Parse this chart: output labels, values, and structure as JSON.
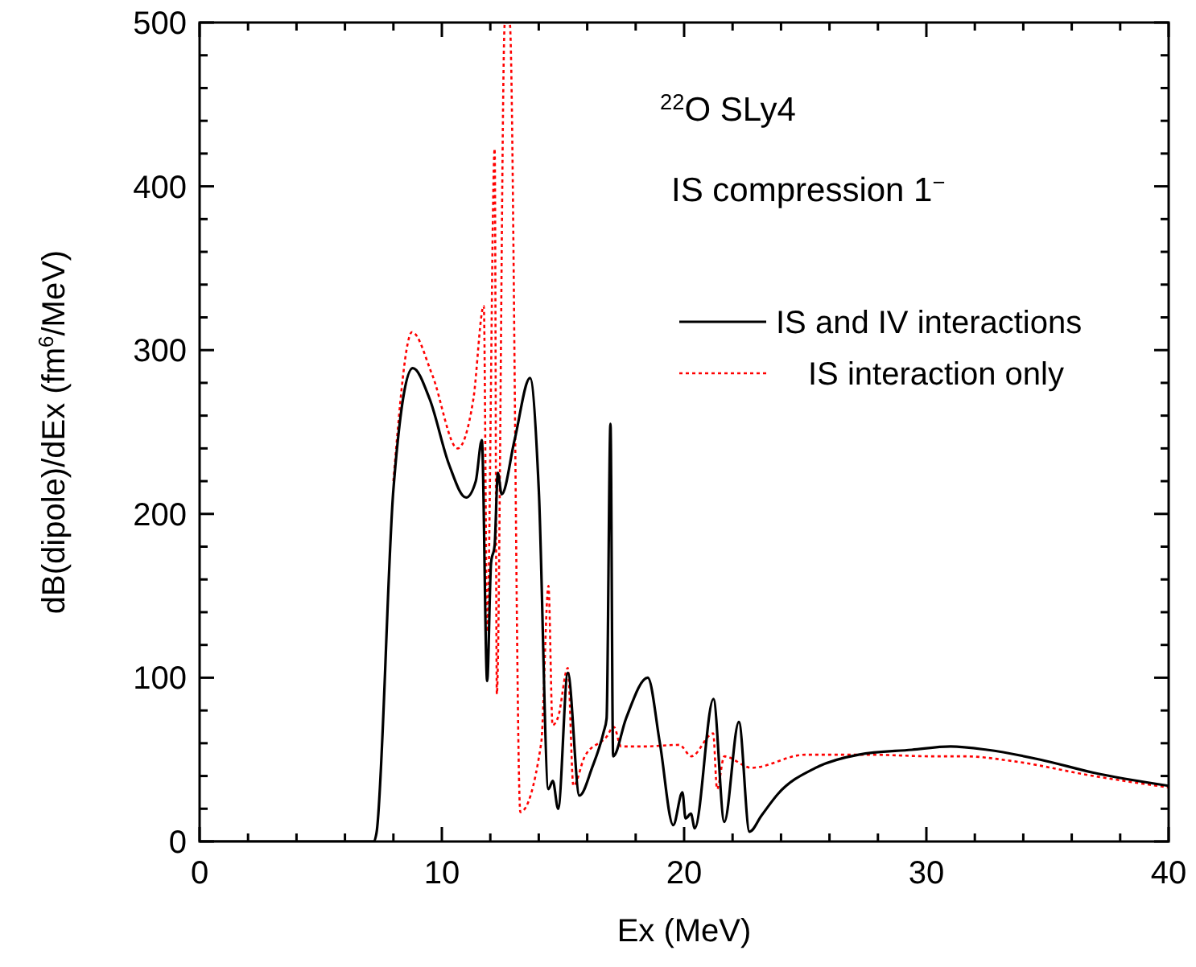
{
  "chart_data": {
    "type": "line",
    "xlabel": "Ex (MeV)",
    "ylabel": "dB(dipole)/dEx (fm$^{6}$/MeV)",
    "annotations": [
      "$^{22}$O  SLy4",
      "IS compression 1$^{−}$"
    ],
    "xlim": [
      0,
      40
    ],
    "ylim": [
      0,
      500
    ],
    "xticks": [
      0,
      {
        "value": 2,
        "label": null
      },
      {
        "value": 4,
        "label": null
      },
      {
        "value": 6,
        "label": null
      },
      {
        "value": 8,
        "label": null
      },
      10,
      {
        "value": 12,
        "label": null
      },
      {
        "value": 14,
        "label": null
      },
      {
        "value": 16,
        "label": null
      },
      {
        "value": 18,
        "label": null
      },
      20,
      {
        "value": 22,
        "label": null
      },
      {
        "value": 24,
        "label": null
      },
      {
        "value": 26,
        "label": null
      },
      {
        "value": 28,
        "label": null
      },
      30,
      {
        "value": 32,
        "label": null
      },
      {
        "value": 34,
        "label": null
      },
      {
        "value": 36,
        "label": null
      },
      {
        "value": 38,
        "label": null
      },
      40
    ],
    "yticks": [
      0,
      {
        "value": 20,
        "label": null
      },
      {
        "value": 40,
        "label": null
      },
      {
        "value": 60,
        "label": null
      },
      {
        "value": 80,
        "label": null
      },
      100,
      {
        "value": 120,
        "label": null
      },
      {
        "value": 140,
        "label": null
      },
      {
        "value": 160,
        "label": null
      },
      {
        "value": 180,
        "label": null
      },
      200,
      {
        "value": 220,
        "label": null
      },
      {
        "value": 240,
        "label": null
      },
      {
        "value": 260,
        "label": null
      },
      {
        "value": 280,
        "label": null
      },
      300,
      {
        "value": 320,
        "label": null
      },
      {
        "value": 340,
        "label": null
      },
      {
        "value": 360,
        "label": null
      },
      {
        "value": 380,
        "label": null
      },
      400,
      {
        "value": 420,
        "label": null
      },
      {
        "value": 440,
        "label": null
      },
      {
        "value": 460,
        "label": null
      },
      {
        "value": 480,
        "label": null
      },
      500
    ],
    "grid": false,
    "legend": "right",
    "marker": "none",
    "series": [
      {
        "name": "IS and IV interactions",
        "color": "#000000",
        "line_style": "solid",
        "x": [
          0,
          7.2,
          7.3,
          8.0,
          8.8,
          9.5,
          10.3,
          11.0,
          11.4,
          11.65,
          11.87,
          12.03,
          12.18,
          12.31,
          12.47,
          13.0,
          13.64,
          14.0,
          14.4,
          14.58,
          14.8,
          15.2,
          15.68,
          16.2,
          16.68,
          16.8,
          16.96,
          17.07,
          17.6,
          18.5,
          19.0,
          19.55,
          19.93,
          20.06,
          20.28,
          20.44,
          21.21,
          21.66,
          22.26,
          22.7,
          23.2,
          23.87,
          25.43,
          27.2,
          29.4,
          31.0,
          32.5,
          34.7,
          36.9,
          40
        ],
        "values": [
          0,
          0,
          5,
          215,
          289,
          270,
          230,
          210,
          220,
          245,
          98,
          170,
          181,
          225,
          212,
          245,
          283,
          215,
          32,
          37,
          20,
          103,
          28,
          45,
          67,
          75,
          255,
          52,
          75,
          100,
          60,
          10,
          30,
          14,
          17,
          8,
          87,
          12,
          73,
          6,
          16,
          29,
          45,
          53,
          56,
          58,
          56,
          50,
          42,
          34
        ]
      },
      {
        "name": "IS interaction only",
        "color": "#ff0000",
        "line_style": "dotted",
        "x": [
          8.0,
          8.77,
          9.6,
          10.65,
          11.3,
          11.73,
          11.87,
          12.18,
          12.27,
          12.6,
          12.8,
          13.24,
          14.1,
          14.4,
          14.57,
          14.8,
          15.2,
          15.43,
          15.9,
          16.8,
          17.1,
          17.4,
          18.3,
          19.8,
          20.3,
          21.2,
          21.36,
          21.66,
          22.78,
          25.0,
          27.6,
          30.3,
          31.6,
          33.6,
          36.9,
          40
        ],
        "values": [
          220,
          311,
          285,
          240,
          270,
          327,
          128,
          423,
          90,
          500,
          500,
          18,
          60,
          156,
          71,
          76,
          106,
          34,
          52,
          64,
          70,
          58,
          58,
          59,
          52,
          66,
          32,
          52,
          45,
          53,
          53,
          52,
          52,
          49,
          40,
          33
        ]
      }
    ]
  }
}
